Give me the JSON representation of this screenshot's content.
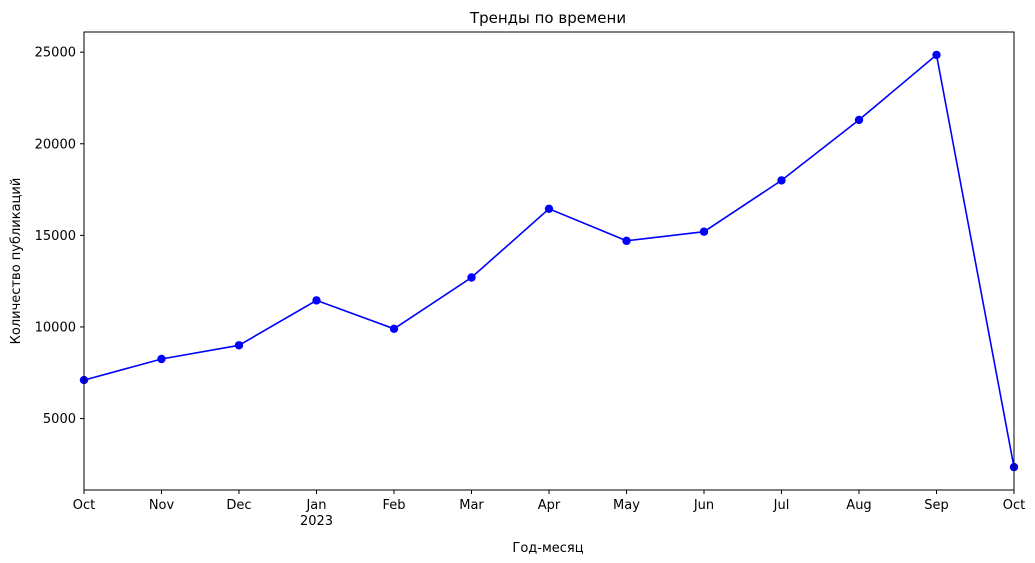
{
  "chart_data": {
    "type": "line",
    "title": "Тренды по времени",
    "xlabel": "Год-месяц",
    "ylabel": "Количество публикаций",
    "x": [
      "2022-10",
      "2022-11",
      "2022-12",
      "2023-01",
      "2023-02",
      "2023-03",
      "2023-04",
      "2023-05",
      "2023-06",
      "2023-07",
      "2023-08",
      "2023-09",
      "2023-10"
    ],
    "x_tick_labels": [
      "Oct",
      "Nov",
      "Dec",
      "Jan",
      "Feb",
      "Mar",
      "Apr",
      "May",
      "Jun",
      "Jul",
      "Aug",
      "Sep",
      "Oct"
    ],
    "x_tick_sublabels": [
      "",
      "",
      "",
      "2023",
      "",
      "",
      "",
      "",
      "",
      "",
      "",
      "",
      ""
    ],
    "series": [
      {
        "values": [
          7100,
          8250,
          9000,
          11450,
          9900,
          12700,
          16450,
          14700,
          15200,
          18000,
          21300,
          24850,
          2350
        ],
        "color": "#0000ff",
        "marker": "circle"
      }
    ],
    "y_ticks": [
      5000,
      10000,
      15000,
      20000,
      25000
    ],
    "ylim": [
      1100,
      26100
    ],
    "grid": false,
    "legend": "none"
  }
}
